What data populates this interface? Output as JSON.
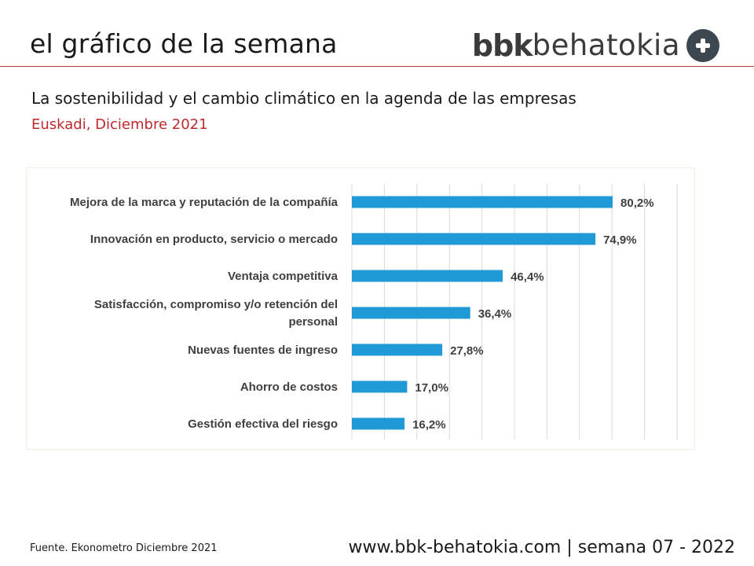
{
  "header": {
    "title": "el gráfico de la semana",
    "brand_bold": "bbk",
    "brand_light": "behatokia"
  },
  "subtitle": "La sostenibilidad y el cambio climático en la agenda de las empresas",
  "region_date": "Euskadi, Diciembre 2021",
  "footer": {
    "source": "Fuente. Ekonometro Diciembre 2021",
    "site": "www.bbk-behatokia.com | semana 07 - 2022"
  },
  "colors": {
    "bar": "#1f9ad6",
    "accent": "#c0282d",
    "grid": "#d9d9d9"
  },
  "chart_data": {
    "type": "bar",
    "orientation": "horizontal",
    "categories": [
      [
        "Mejora de la marca y reputación de la compañía"
      ],
      [
        "Innovación en producto, servicio o mercado"
      ],
      [
        "Ventaja competitiva"
      ],
      [
        "Satisfacción, compromiso y/o retención del",
        "personal"
      ],
      [
        "Nuevas fuentes de ingreso"
      ],
      [
        "Ahorro de costos"
      ],
      [
        "Gestión efectiva del riesgo"
      ]
    ],
    "values": [
      80.2,
      74.9,
      46.4,
      36.4,
      27.8,
      17.0,
      16.2
    ],
    "value_labels": [
      "80,2%",
      "74,9%",
      "46,4%",
      "36,4%",
      "27,8%",
      "17,0%",
      "16,2%"
    ],
    "xlim": [
      0,
      100
    ],
    "grid": true,
    "legend": "none"
  }
}
